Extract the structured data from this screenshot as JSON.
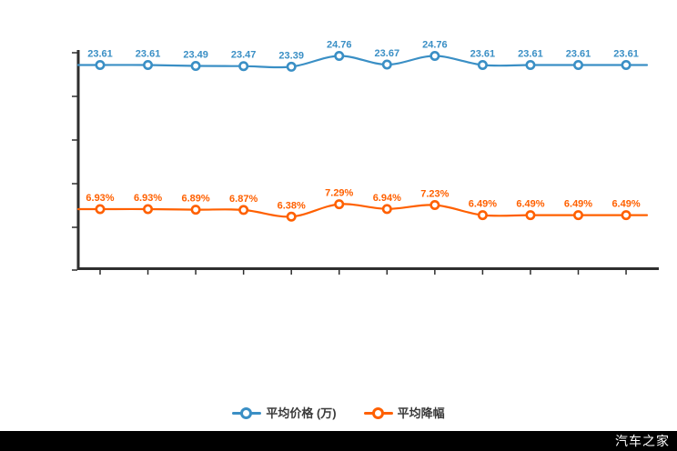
{
  "chart_data": {
    "type": "line",
    "title": "",
    "xlabel": "",
    "ylabel": "",
    "grid": false,
    "legend_position": "bottom",
    "x_tick_labels_visible": false,
    "y_tick_labels_visible": false,
    "num_points": 12,
    "series": [
      {
        "name": "平均价格 (万)",
        "color": "#3a8fc5",
        "values": [
          23.61,
          23.61,
          23.49,
          23.47,
          23.39,
          24.76,
          23.67,
          24.76,
          23.61,
          23.61,
          23.61,
          23.61
        ],
        "labels": [
          "23.61",
          "23.61",
          "23.49",
          "23.47",
          "23.39",
          "24.76",
          "23.67",
          "24.76",
          "23.61",
          "23.61",
          "23.61",
          "23.61"
        ]
      },
      {
        "name": "平均降幅",
        "color": "#ff6000",
        "values": [
          6.93,
          6.93,
          6.89,
          6.87,
          6.38,
          7.29,
          6.94,
          7.23,
          6.49,
          6.49,
          6.49,
          6.49
        ],
        "labels": [
          "6.93%",
          "6.93%",
          "6.89%",
          "6.87%",
          "6.38%",
          "7.29%",
          "6.94%",
          "7.23%",
          "6.49%",
          "6.49%",
          "6.49%",
          "6.49%"
        ]
      }
    ]
  },
  "legend": {
    "items": [
      {
        "label": "平均价格 (万)",
        "color": "#3a8fc5"
      },
      {
        "label": "平均降幅",
        "color": "#ff6000"
      }
    ]
  },
  "watermark": {
    "text": "汽车之家",
    "background": "#000000",
    "text_color": "#ffffff"
  },
  "colors": {
    "axis": "#2e2e2e",
    "background": "#ffffff",
    "series_blue": "#3a8fc5",
    "series_orange": "#ff6000"
  }
}
